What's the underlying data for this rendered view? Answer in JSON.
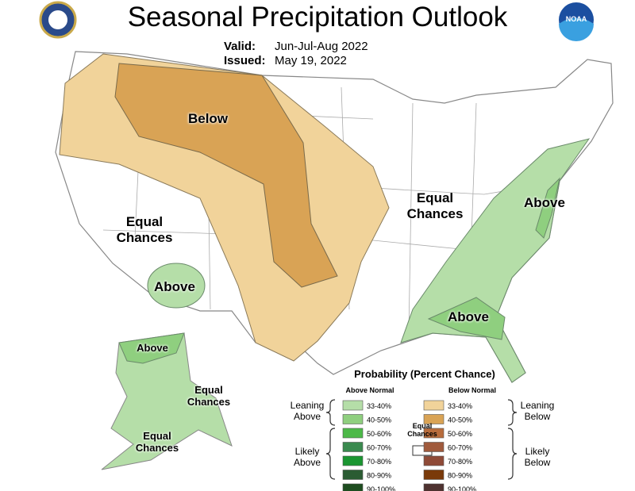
{
  "header": {
    "title": "Seasonal Precipitation Outlook",
    "valid_label": "Valid:",
    "valid": "Jun-Jul-Aug 2022",
    "issued_label": "Issued:",
    "issued": "May 19, 2022",
    "logo": "NOAA"
  },
  "map_labels": [
    "Below",
    "Equal Chances",
    "Above",
    "Equal Chances",
    "Above",
    "Above",
    "Above",
    "Equal Chances",
    "Equal Chances"
  ],
  "legend": {
    "title": "Probability (Percent Chance)",
    "above_header": "Above Normal",
    "below_header": "Below Normal",
    "leaning_above": "Leaning Above",
    "likely_above": "Likely Above",
    "equal": "Equal Chances",
    "leaning_below": "Leaning Below",
    "likely_below": "Likely Below",
    "above_rows": [
      {
        "range": "33-40%",
        "color": "#b5dea8"
      },
      {
        "range": "40-50%",
        "color": "#8fcf7f"
      },
      {
        "range": "50-60%",
        "color": "#4cb948"
      },
      {
        "range": "60-70%",
        "color": "#3a8a4f"
      },
      {
        "range": "70-80%",
        "color": "#1a9631"
      },
      {
        "range": "80-90%",
        "color": "#2b5c33"
      },
      {
        "range": "90-100%",
        "color": "#1e4d20"
      }
    ],
    "below_rows": [
      {
        "range": "33-40%",
        "color": "#f1d39a"
      },
      {
        "range": "40-50%",
        "color": "#d9a355"
      },
      {
        "range": "50-60%",
        "color": "#b86c3c"
      },
      {
        "range": "60-70%",
        "color": "#a05a3c"
      },
      {
        "range": "70-80%",
        "color": "#8f4a37"
      },
      {
        "range": "80-90%",
        "color": "#7a3a0a"
      },
      {
        "range": "90-100%",
        "color": "#4e3230"
      }
    ]
  }
}
